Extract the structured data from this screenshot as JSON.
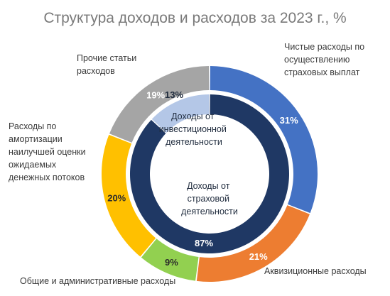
{
  "title": "Структура доходов и расходов за 2023 г., %",
  "chart_data": {
    "type": "pie",
    "variant": "double-donut",
    "title": "Структура доходов и расходов за 2023 г., %",
    "outer": {
      "categories": [
        "Чистые расходы по осуществлению страховых выплат",
        "Аквизиционные расходы",
        "Общие и административные расходы",
        "Расходы по амортизации наилучшей оценки ожидаемых денежных потоков",
        "Прочие статьи расходов"
      ],
      "values": [
        31,
        21,
        9,
        20,
        19
      ],
      "labels": [
        "31%",
        "21%",
        "9%",
        "20%",
        "19%"
      ],
      "colors": [
        "#4472c4",
        "#ed7d31",
        "#92d050",
        "#ffc000",
        "#a5a5a5"
      ]
    },
    "inner": {
      "categories": [
        "Доходы от страховой деятельности",
        "Доходы от инвестиционной деятельности"
      ],
      "values": [
        87,
        13
      ],
      "labels": [
        "87%",
        "13%"
      ],
      "colors": [
        "#1f3864",
        "#b4c7e7"
      ]
    }
  }
}
